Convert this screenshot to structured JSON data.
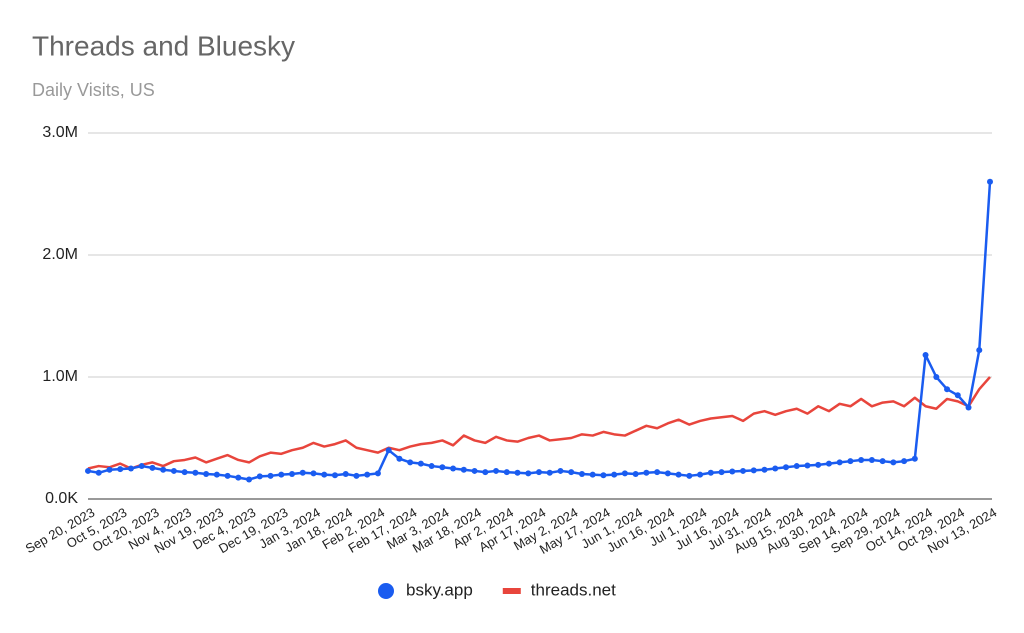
{
  "chart_data": {
    "type": "line",
    "title": "Threads and Bluesky",
    "subtitle": "Daily Visits, US",
    "categories": [
      "Sep 20, 2023",
      null,
      null,
      "Oct 5, 2023",
      null,
      null,
      "Oct 20, 2023",
      null,
      null,
      "Nov 4, 2023",
      null,
      null,
      "Nov 19, 2023",
      null,
      null,
      "Dec 4, 2023",
      null,
      null,
      "Dec 19, 2023",
      null,
      null,
      "Jan 3, 2024",
      null,
      null,
      "Jan 18, 2024",
      null,
      null,
      "Feb 2, 2024",
      null,
      null,
      "Feb 17, 2024",
      null,
      null,
      "Mar 3, 2024",
      null,
      null,
      "Mar 18, 2024",
      null,
      null,
      "Apr 2, 2024",
      null,
      null,
      "Apr 17, 2024",
      null,
      null,
      "May 2, 2024",
      null,
      null,
      "May 17, 2024",
      null,
      null,
      "Jun 1, 2024",
      null,
      null,
      "Jun 16, 2024",
      null,
      null,
      "Jul 1, 2024",
      null,
      null,
      "Jul 16, 2024",
      null,
      null,
      "Jul 31, 2024",
      null,
      null,
      "Aug 15, 2024",
      null,
      null,
      "Aug 30, 2024",
      null,
      null,
      "Sep 14, 2024",
      null,
      null,
      "Sep 29, 2024",
      null,
      null,
      "Oct 14, 2024",
      null,
      null,
      "Oct 29, 2024",
      null,
      null,
      "Nov 13, 2024"
    ],
    "series": [
      {
        "name": "bsky.app",
        "color": "#1a5cf0",
        "marker": "circle",
        "values": [
          230000,
          215000,
          240000,
          245000,
          250000,
          270000,
          255000,
          240000,
          230000,
          220000,
          215000,
          205000,
          200000,
          190000,
          175000,
          160000,
          185000,
          190000,
          200000,
          205000,
          215000,
          210000,
          200000,
          195000,
          205000,
          190000,
          200000,
          210000,
          400000,
          330000,
          300000,
          290000,
          270000,
          260000,
          250000,
          240000,
          230000,
          220000,
          230000,
          220000,
          215000,
          210000,
          220000,
          215000,
          230000,
          220000,
          205000,
          200000,
          195000,
          200000,
          210000,
          205000,
          215000,
          220000,
          210000,
          200000,
          190000,
          200000,
          215000,
          220000,
          225000,
          230000,
          235000,
          240000,
          250000,
          260000,
          270000,
          275000,
          280000,
          290000,
          300000,
          310000,
          320000,
          320000,
          310000,
          300000,
          310000,
          330000,
          1180000,
          1000000,
          900000,
          850000,
          750000,
          1220000,
          2600000
        ]
      },
      {
        "name": "threads.net",
        "color": "#e8453c",
        "values": [
          250000,
          270000,
          260000,
          290000,
          250000,
          280000,
          300000,
          270000,
          310000,
          320000,
          340000,
          300000,
          330000,
          360000,
          320000,
          300000,
          350000,
          380000,
          370000,
          400000,
          420000,
          460000,
          430000,
          450000,
          480000,
          420000,
          400000,
          380000,
          420000,
          400000,
          430000,
          450000,
          460000,
          480000,
          440000,
          520000,
          480000,
          460000,
          510000,
          480000,
          470000,
          500000,
          520000,
          480000,
          490000,
          500000,
          530000,
          520000,
          550000,
          530000,
          520000,
          560000,
          600000,
          580000,
          620000,
          650000,
          610000,
          640000,
          660000,
          670000,
          680000,
          640000,
          700000,
          720000,
          690000,
          720000,
          740000,
          700000,
          760000,
          720000,
          780000,
          760000,
          820000,
          760000,
          790000,
          800000,
          760000,
          830000,
          760000,
          740000,
          820000,
          800000,
          760000,
          900000,
          1000000
        ]
      }
    ],
    "ylim": [
      0,
      3000000
    ],
    "yticks": [
      {
        "value": 0,
        "label": "0.0K"
      },
      {
        "value": 1000000,
        "label": "1.0M"
      },
      {
        "value": 2000000,
        "label": "2.0M"
      },
      {
        "value": 3000000,
        "label": "3.0M"
      }
    ],
    "grid": true,
    "legend": "bottom"
  }
}
